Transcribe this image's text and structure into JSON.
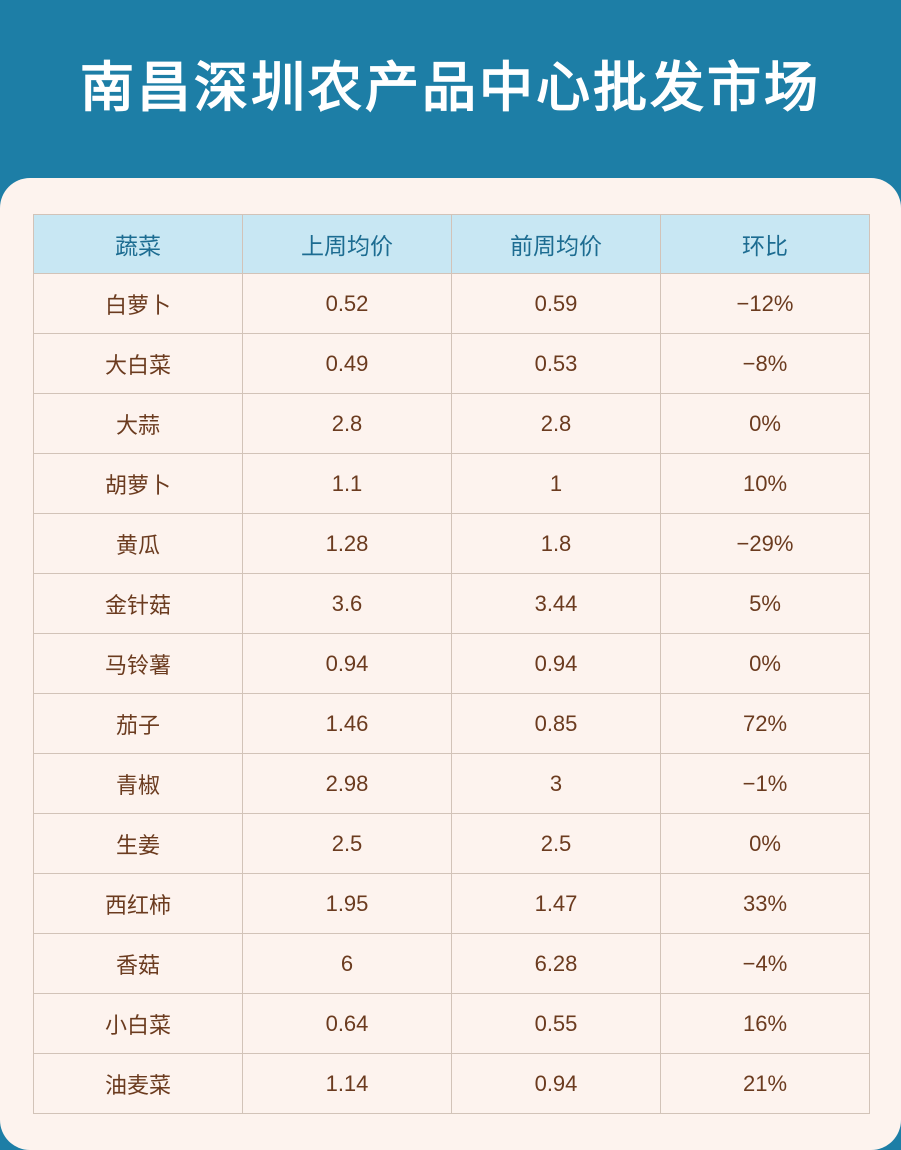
{
  "title": "南昌深圳农产品中心批发市场",
  "table": {
    "headers": [
      "蔬菜",
      "上周均价",
      "前周均价",
      "环比"
    ],
    "rows": [
      [
        "白萝卜",
        "0.52",
        "0.59",
        "−12%"
      ],
      [
        "大白菜",
        "0.49",
        "0.53",
        "−8%"
      ],
      [
        "大蒜",
        "2.8",
        "2.8",
        "0%"
      ],
      [
        "胡萝卜",
        "1.1",
        "1",
        "10%"
      ],
      [
        "黄瓜",
        "1.28",
        "1.8",
        "−29%"
      ],
      [
        "金针菇",
        "3.6",
        "3.44",
        "5%"
      ],
      [
        "马铃薯",
        "0.94",
        "0.94",
        "0%"
      ],
      [
        "茄子",
        "1.46",
        "0.85",
        "72%"
      ],
      [
        "青椒",
        "2.98",
        "3",
        "−1%"
      ],
      [
        "生姜",
        "2.5",
        "2.5",
        "0%"
      ],
      [
        "西红柿",
        "1.95",
        "1.47",
        "33%"
      ],
      [
        "香菇",
        "6",
        "6.28",
        "−4%"
      ],
      [
        "小白菜",
        "0.64",
        "0.55",
        "16%"
      ],
      [
        "油麦菜",
        "1.14",
        "0.94",
        "21%"
      ]
    ]
  },
  "colors": {
    "header_band": "#1d7ea6",
    "card_bg": "#fdf3ee",
    "table_header_bg": "#c8e7f3",
    "table_header_text": "#1c6c91",
    "cell_text": "#6b3b1f",
    "border": "#d2c3b8"
  }
}
